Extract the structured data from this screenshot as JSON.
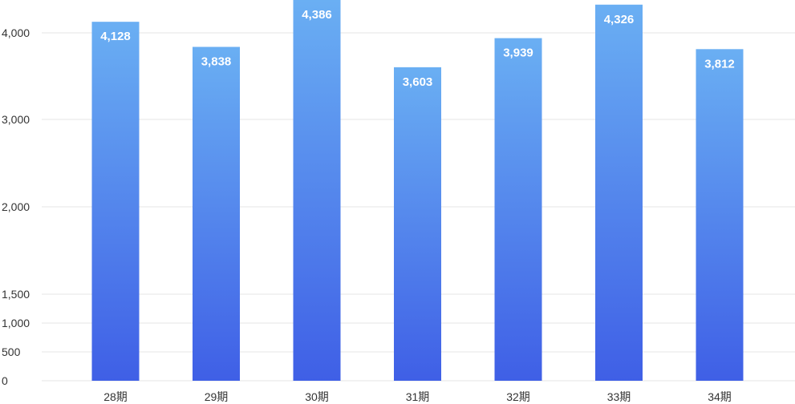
{
  "chart_data": {
    "type": "bar",
    "categories": [
      "28期",
      "29期",
      "30期",
      "31期",
      "32期",
      "33期",
      "34期"
    ],
    "values": [
      4128,
      3838,
      4386,
      3603,
      3939,
      4326,
      3812
    ],
    "value_labels": [
      "4,128",
      "3,838",
      "4,386",
      "3,603",
      "3,939",
      "4,326",
      "3,812"
    ],
    "y_ticks": [
      0,
      500,
      1000,
      1500,
      2000,
      3000,
      4000
    ],
    "y_tick_labels": [
      "0",
      "500",
      "1,000",
      "1,500",
      "2,000",
      "3,000",
      "4,000"
    ],
    "grid": true,
    "colors": {
      "bar_top": "#6aaff3",
      "bar_bottom": "#3f5fe6",
      "grid": "#e6e6e6"
    }
  }
}
